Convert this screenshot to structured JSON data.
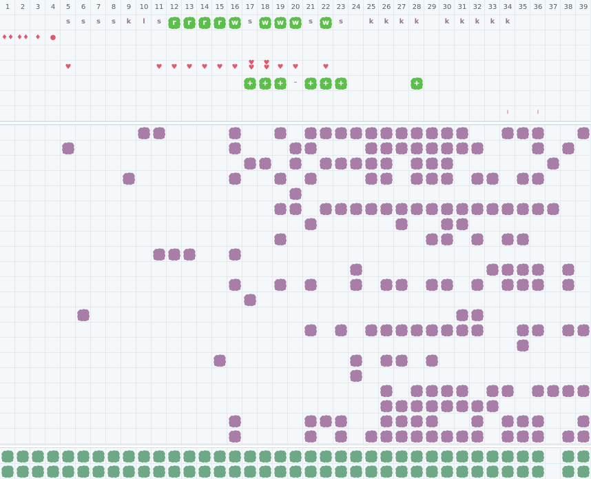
{
  "columns": [
    "1",
    "2",
    "3",
    "4",
    "5",
    "6",
    "7",
    "8",
    "9",
    "10",
    "11",
    "12",
    "13",
    "14",
    "15",
    "16",
    "17",
    "18",
    "19",
    "20",
    "21",
    "22",
    "23",
    "24",
    "25",
    "26",
    "27",
    "28",
    "29",
    "30",
    "31",
    "32",
    "33",
    "34",
    "35",
    "36",
    "37",
    "38",
    "39"
  ],
  "letters": [
    {
      "col": 5,
      "ch": "s"
    },
    {
      "col": 6,
      "ch": "s"
    },
    {
      "col": 7,
      "ch": "s"
    },
    {
      "col": 8,
      "ch": "s"
    },
    {
      "col": 9,
      "ch": "k"
    },
    {
      "col": 10,
      "ch": "l"
    },
    {
      "col": 11,
      "ch": "s"
    },
    {
      "col": 17,
      "ch": "s"
    },
    {
      "col": 21,
      "ch": "s"
    },
    {
      "col": 23,
      "ch": "s"
    },
    {
      "col": 25,
      "ch": "k"
    },
    {
      "col": 26,
      "ch": "k"
    },
    {
      "col": 27,
      "ch": "k"
    },
    {
      "col": 28,
      "ch": "k"
    },
    {
      "col": 30,
      "ch": "k"
    },
    {
      "col": 31,
      "ch": "k"
    },
    {
      "col": 32,
      "ch": "k"
    },
    {
      "col": 33,
      "ch": "k"
    },
    {
      "col": 34,
      "ch": "k"
    }
  ],
  "green_letters": [
    {
      "col": 12,
      "ch": "r"
    },
    {
      "col": 13,
      "ch": "r"
    },
    {
      "col": 14,
      "ch": "r"
    },
    {
      "col": 15,
      "ch": "r"
    },
    {
      "col": 16,
      "ch": "w"
    },
    {
      "col": 18,
      "ch": "w"
    },
    {
      "col": 19,
      "ch": "w"
    },
    {
      "col": 20,
      "ch": "w"
    },
    {
      "col": 22,
      "ch": "w"
    }
  ],
  "drops": [
    {
      "col": 1,
      "ch": "♦♦"
    },
    {
      "col": 2,
      "ch": "♦♦"
    },
    {
      "col": 3,
      "ch": "♦"
    },
    {
      "col": 4,
      "ch": "●"
    }
  ],
  "hearts": [
    {
      "col": 5,
      "ch": "♥"
    },
    {
      "col": 11,
      "ch": "♥"
    },
    {
      "col": 12,
      "ch": "♥"
    },
    {
      "col": 13,
      "ch": "♥"
    },
    {
      "col": 14,
      "ch": "♥"
    },
    {
      "col": 15,
      "ch": "♥"
    },
    {
      "col": 16,
      "ch": "♥"
    },
    {
      "col": 17,
      "ch": "♥♥"
    },
    {
      "col": 18,
      "ch": "♥♥"
    },
    {
      "col": 19,
      "ch": "♥"
    },
    {
      "col": 20,
      "ch": "♥"
    },
    {
      "col": 22,
      "ch": "♥"
    }
  ],
  "plus_tiles": [
    {
      "col": 17,
      "ch": "+"
    },
    {
      "col": 18,
      "ch": "+"
    },
    {
      "col": 19,
      "ch": "+"
    },
    {
      "col": 21,
      "ch": "+"
    },
    {
      "col": 22,
      "ch": "+"
    },
    {
      "col": 23,
      "ch": "+"
    },
    {
      "col": 28,
      "ch": "+"
    }
  ],
  "minus_marks": [
    {
      "col": 20,
      "ch": "–"
    }
  ],
  "pipe_marks": [
    {
      "col": 34,
      "ch": "ı"
    },
    {
      "col": 36,
      "ch": "ı"
    }
  ],
  "purple_rows": [
    [
      10,
      11,
      16,
      19,
      21,
      22,
      23,
      24,
      25,
      26,
      27,
      28,
      29,
      30,
      31,
      34,
      35,
      36,
      39
    ],
    [
      5,
      16,
      20,
      21,
      25,
      26,
      27,
      28,
      29,
      30,
      31,
      32,
      36,
      38
    ],
    [
      17,
      18,
      20,
      22,
      23,
      24,
      25,
      26,
      28,
      29,
      30,
      37
    ],
    [
      9,
      16,
      19,
      21,
      25,
      26,
      28,
      29,
      30,
      32,
      33,
      35,
      36
    ],
    [
      20
    ],
    [
      19,
      20,
      22,
      23,
      24,
      25,
      26,
      27,
      28,
      29,
      30,
      31,
      32,
      33,
      34,
      35,
      36,
      37
    ],
    [
      21,
      27,
      30,
      31
    ],
    [
      19,
      29,
      30,
      32,
      34,
      35
    ],
    [
      11,
      12,
      13,
      16
    ],
    [
      24,
      33,
      34,
      35,
      36,
      38
    ],
    [
      16,
      19,
      21,
      24,
      26,
      27,
      29,
      30,
      32,
      34,
      35,
      36,
      38
    ],
    [
      17
    ],
    [
      6,
      31,
      32
    ],
    [
      21,
      23,
      25,
      26,
      27,
      28,
      29,
      30,
      31,
      32,
      35,
      36,
      38,
      39
    ],
    [
      35
    ],
    [
      15,
      24,
      26,
      27,
      29
    ],
    [
      24
    ],
    [
      26,
      28,
      29,
      30,
      31,
      33,
      34,
      36,
      37,
      38,
      39
    ],
    [
      26,
      27,
      28,
      29,
      30,
      31,
      32,
      33
    ],
    [
      16,
      21,
      22,
      23,
      26,
      27,
      28,
      29,
      32,
      34,
      35,
      36,
      39
    ],
    [
      16,
      21,
      23,
      25,
      26,
      27,
      28,
      29,
      30,
      31,
      32,
      34,
      35,
      36,
      38,
      39
    ]
  ],
  "bottom_rows": [
    [
      1,
      2,
      3,
      4,
      5,
      6,
      7,
      8,
      9,
      10,
      11,
      12,
      13,
      14,
      15,
      16,
      17,
      18,
      19,
      20,
      21,
      22,
      23,
      24,
      25,
      26,
      27,
      28,
      29,
      30,
      31,
      32,
      33,
      34,
      35,
      36,
      38,
      39
    ],
    [
      1,
      2,
      3,
      4,
      5,
      6,
      7,
      8,
      9,
      10,
      11,
      12,
      13,
      14,
      15,
      16,
      17,
      18,
      19,
      20,
      21,
      22,
      23,
      24,
      25,
      26,
      27,
      28,
      29,
      30,
      31,
      32,
      33,
      34,
      35,
      36,
      38,
      39
    ]
  ],
  "colors": {
    "grid_line": "#dcebef",
    "background": "#f4f8fa",
    "purple_tile": "#a87ea8",
    "green_tile": "#5cbf4a",
    "bottom_tile": "#6fa887",
    "heart": "#e05a6a",
    "letter": "#a0729a"
  }
}
